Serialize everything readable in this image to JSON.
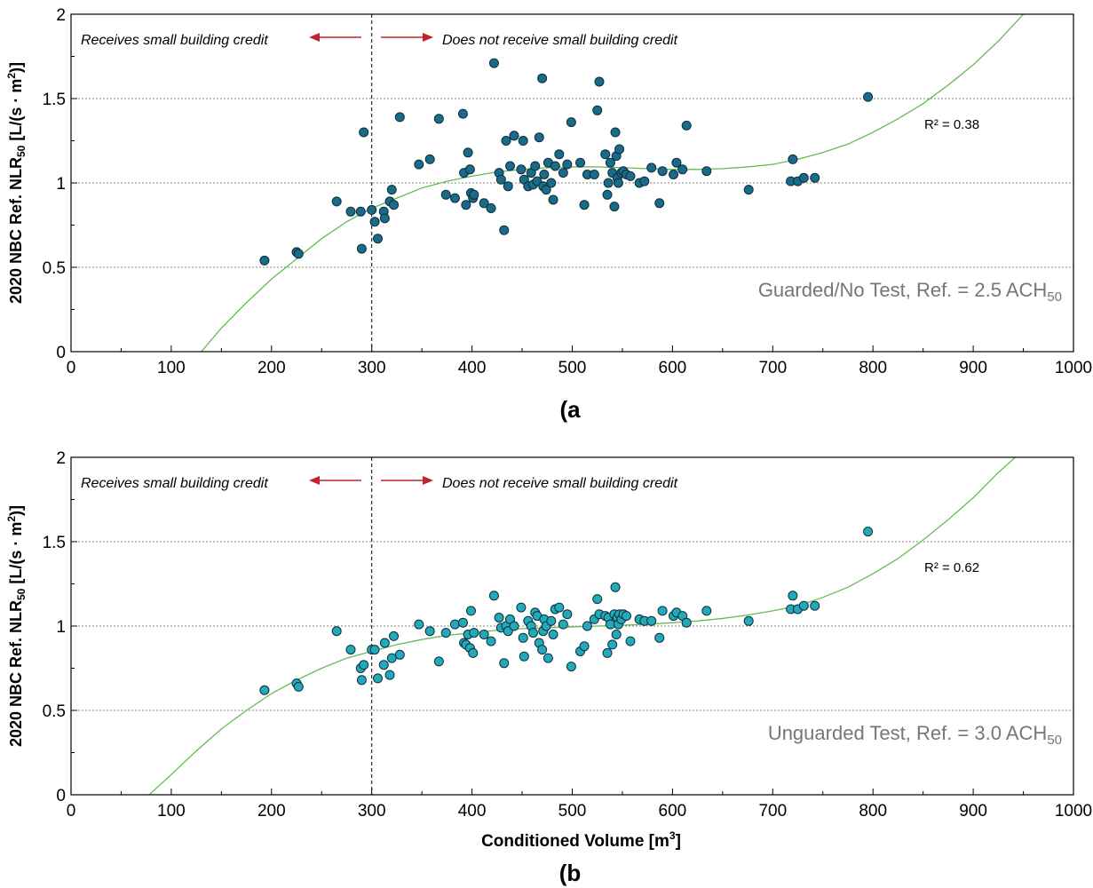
{
  "chart_data": [
    {
      "type": "scatter",
      "panel_label": "(a",
      "xlabel": "",
      "ylabel": "2020 NBC Ref. NLR50 [L/(s·m2)]",
      "ylabel_parts": {
        "pre": "2020 NBC Ref. NLR",
        "sub": "50",
        "mid": " [L/(s · m",
        "sup": "2",
        "post": ")]"
      },
      "xlim": [
        0,
        1000
      ],
      "ylim": [
        0,
        2
      ],
      "x_ticks": [
        0,
        100,
        200,
        300,
        400,
        500,
        600,
        700,
        800,
        900,
        1000
      ],
      "y_ticks": [
        0,
        0.5,
        1,
        1.5,
        2
      ],
      "y_tick_labels": [
        "0",
        "0.5",
        "1",
        "1.5",
        "2"
      ],
      "grid_y": [
        0.5,
        1,
        1.5
      ],
      "threshold_x": 300,
      "left_note": "Receives small building credit",
      "right_note": "Does not receive small building credit",
      "r2_text": "R² = 0.38",
      "condition": {
        "pre": "Guarded/No Test, Ref. = 2.5 ACH",
        "sub": "50"
      },
      "point_color": "#1a6a8a",
      "fit_color": "#66bb55",
      "fit_curve": {
        "x": [
          130,
          150,
          175,
          200,
          225,
          250,
          275,
          300,
          325,
          350,
          375,
          400,
          425,
          450,
          475,
          500,
          525,
          550,
          575,
          600,
          625,
          650,
          675,
          700,
          725,
          750,
          775,
          800,
          825,
          850,
          875,
          900,
          925,
          950
        ],
        "y": [
          0.0,
          0.14,
          0.29,
          0.43,
          0.55,
          0.67,
          0.77,
          0.85,
          0.91,
          0.97,
          1.01,
          1.04,
          1.065,
          1.08,
          1.09,
          1.095,
          1.095,
          1.09,
          1.085,
          1.08,
          1.08,
          1.085,
          1.095,
          1.11,
          1.14,
          1.18,
          1.23,
          1.3,
          1.38,
          1.47,
          1.58,
          1.7,
          1.84,
          2.0
        ]
      },
      "points": [
        [
          193,
          0.54
        ],
        [
          225,
          0.59
        ],
        [
          227,
          0.58
        ],
        [
          265,
          0.89
        ],
        [
          279,
          0.83
        ],
        [
          289,
          0.83
        ],
        [
          290,
          0.61
        ],
        [
          292,
          1.3
        ],
        [
          300,
          0.84
        ],
        [
          303,
          0.77
        ],
        [
          306,
          0.67
        ],
        [
          312,
          0.83
        ],
        [
          313,
          0.79
        ],
        [
          318,
          0.89
        ],
        [
          320,
          0.96
        ],
        [
          322,
          0.87
        ],
        [
          328,
          1.39
        ],
        [
          347,
          1.11
        ],
        [
          358,
          1.14
        ],
        [
          367,
          1.38
        ],
        [
          374,
          0.93
        ],
        [
          383,
          0.91
        ],
        [
          391,
          1.41
        ],
        [
          392,
          1.06
        ],
        [
          394,
          0.87
        ],
        [
          396,
          1.18
        ],
        [
          398,
          1.08
        ],
        [
          399,
          0.94
        ],
        [
          401,
          0.91
        ],
        [
          402,
          0.93
        ],
        [
          412,
          0.88
        ],
        [
          419,
          0.85
        ],
        [
          422,
          1.71
        ],
        [
          427,
          1.06
        ],
        [
          429,
          1.02
        ],
        [
          432,
          0.72
        ],
        [
          434,
          1.25
        ],
        [
          436,
          0.98
        ],
        [
          438,
          1.1
        ],
        [
          442,
          1.28
        ],
        [
          449,
          1.08
        ],
        [
          451,
          1.25
        ],
        [
          452,
          1.02
        ],
        [
          456,
          0.98
        ],
        [
          459,
          1.06
        ],
        [
          461,
          0.99
        ],
        [
          463,
          1.1
        ],
        [
          465,
          1.01
        ],
        [
          467,
          1.27
        ],
        [
          470,
          1.62
        ],
        [
          471,
          0.98
        ],
        [
          472,
          1.05
        ],
        [
          474,
          0.96
        ],
        [
          476,
          1.12
        ],
        [
          479,
          1.0
        ],
        [
          481,
          0.9
        ],
        [
          483,
          1.1
        ],
        [
          487,
          1.17
        ],
        [
          491,
          1.06
        ],
        [
          495,
          1.11
        ],
        [
          499,
          1.36
        ],
        [
          508,
          1.12
        ],
        [
          512,
          0.87
        ],
        [
          515,
          1.05
        ],
        [
          522,
          1.05
        ],
        [
          525,
          1.43
        ],
        [
          527,
          1.6
        ],
        [
          533,
          1.17
        ],
        [
          535,
          0.93
        ],
        [
          536,
          1.0
        ],
        [
          538,
          1.12
        ],
        [
          540,
          1.06
        ],
        [
          542,
          0.86
        ],
        [
          543,
          1.3
        ],
        [
          544,
          1.16
        ],
        [
          545,
          1.03
        ],
        [
          546,
          1.0
        ],
        [
          547,
          1.2
        ],
        [
          549,
          1.06
        ],
        [
          551,
          1.07
        ],
        [
          554,
          1.05
        ],
        [
          558,
          1.04
        ],
        [
          567,
          1.0
        ],
        [
          572,
          1.01
        ],
        [
          579,
          1.09
        ],
        [
          587,
          0.88
        ],
        [
          590,
          1.07
        ],
        [
          601,
          1.05
        ],
        [
          604,
          1.12
        ],
        [
          610,
          1.08
        ],
        [
          614,
          1.34
        ],
        [
          634,
          1.07
        ],
        [
          676,
          0.96
        ],
        [
          718,
          1.01
        ],
        [
          720,
          1.14
        ],
        [
          725,
          1.01
        ],
        [
          731,
          1.03
        ],
        [
          742,
          1.03
        ],
        [
          795,
          1.51
        ]
      ]
    },
    {
      "type": "scatter",
      "panel_label": "(b",
      "xlabel": "Conditioned Volume [m3]",
      "xlabel_parts": {
        "pre": "Conditioned Volume [m",
        "sup": "3",
        "post": "]"
      },
      "ylabel": "2020 NBC Ref. NLR50 [L/(s·m2)]",
      "ylabel_parts": {
        "pre": "2020 NBC Ref. NLR",
        "sub": "50",
        "mid": " [L/(s · m",
        "sup": "2",
        "post": ")]"
      },
      "xlim": [
        0,
        1000
      ],
      "ylim": [
        0,
        2
      ],
      "x_ticks": [
        0,
        100,
        200,
        300,
        400,
        500,
        600,
        700,
        800,
        900,
        1000
      ],
      "y_ticks": [
        0,
        0.5,
        1,
        1.5,
        2
      ],
      "y_tick_labels": [
        "0",
        "0.5",
        "1",
        "1.5",
        "2"
      ],
      "grid_y": [
        0.5,
        1,
        1.5
      ],
      "threshold_x": 300,
      "left_note": "Receives small building credit",
      "right_note": "Does not receive small building credit",
      "r2_text": "R² = 0.62",
      "condition": {
        "pre": "Unguarded Test, Ref. = 3.0 ACH",
        "sub": "50"
      },
      "point_color": "#22aabb",
      "fit_color": "#66bb55",
      "fit_curve": {
        "x": [
          78,
          100,
          125,
          150,
          175,
          200,
          225,
          250,
          275,
          300,
          325,
          350,
          375,
          400,
          425,
          450,
          475,
          500,
          525,
          550,
          575,
          600,
          625,
          650,
          675,
          700,
          725,
          750,
          775,
          800,
          825,
          850,
          875,
          900,
          925,
          942
        ],
        "y": [
          0.0,
          0.12,
          0.26,
          0.39,
          0.5,
          0.6,
          0.68,
          0.75,
          0.81,
          0.85,
          0.89,
          0.92,
          0.945,
          0.96,
          0.975,
          0.985,
          0.99,
          0.995,
          1.0,
          1.005,
          1.01,
          1.02,
          1.03,
          1.045,
          1.065,
          1.09,
          1.12,
          1.17,
          1.23,
          1.31,
          1.4,
          1.51,
          1.63,
          1.76,
          1.91,
          2.0
        ]
      },
      "points": [
        [
          193,
          0.62
        ],
        [
          225,
          0.66
        ],
        [
          227,
          0.64
        ],
        [
          265,
          0.97
        ],
        [
          279,
          0.86
        ],
        [
          289,
          0.75
        ],
        [
          290,
          0.68
        ],
        [
          292,
          0.77
        ],
        [
          300,
          0.86
        ],
        [
          303,
          0.86
        ],
        [
          306,
          0.69
        ],
        [
          312,
          0.77
        ],
        [
          313,
          0.9
        ],
        [
          318,
          0.71
        ],
        [
          320,
          0.81
        ],
        [
          322,
          0.94
        ],
        [
          328,
          0.83
        ],
        [
          347,
          1.01
        ],
        [
          358,
          0.97
        ],
        [
          367,
          0.79
        ],
        [
          374,
          0.96
        ],
        [
          383,
          1.01
        ],
        [
          391,
          1.02
        ],
        [
          392,
          0.9
        ],
        [
          394,
          0.89
        ],
        [
          396,
          0.95
        ],
        [
          398,
          0.87
        ],
        [
          399,
          1.09
        ],
        [
          401,
          0.84
        ],
        [
          402,
          0.96
        ],
        [
          412,
          0.95
        ],
        [
          419,
          0.91
        ],
        [
          422,
          1.18
        ],
        [
          427,
          1.05
        ],
        [
          429,
          0.99
        ],
        [
          432,
          0.78
        ],
        [
          434,
          1.0
        ],
        [
          436,
          0.97
        ],
        [
          438,
          1.04
        ],
        [
          442,
          1.0
        ],
        [
          449,
          1.11
        ],
        [
          451,
          0.93
        ],
        [
          452,
          0.82
        ],
        [
          456,
          1.03
        ],
        [
          459,
          1.0
        ],
        [
          461,
          0.96
        ],
        [
          463,
          1.08
        ],
        [
          465,
          1.06
        ],
        [
          467,
          0.9
        ],
        [
          470,
          0.86
        ],
        [
          471,
          0.97
        ],
        [
          472,
          1.04
        ],
        [
          474,
          1.0
        ],
        [
          476,
          0.81
        ],
        [
          479,
          1.03
        ],
        [
          481,
          0.95
        ],
        [
          483,
          1.1
        ],
        [
          487,
          1.11
        ],
        [
          491,
          1.01
        ],
        [
          495,
          1.07
        ],
        [
          499,
          0.76
        ],
        [
          508,
          0.85
        ],
        [
          512,
          0.88
        ],
        [
          515,
          1.0
        ],
        [
          522,
          1.04
        ],
        [
          525,
          1.16
        ],
        [
          527,
          1.07
        ],
        [
          533,
          1.06
        ],
        [
          535,
          0.84
        ],
        [
          536,
          1.05
        ],
        [
          538,
          1.01
        ],
        [
          540,
          0.89
        ],
        [
          542,
          1.07
        ],
        [
          543,
          1.23
        ],
        [
          544,
          0.95
        ],
        [
          545,
          1.05
        ],
        [
          546,
          1.01
        ],
        [
          547,
          1.07
        ],
        [
          549,
          1.04
        ],
        [
          551,
          1.07
        ],
        [
          554,
          1.06
        ],
        [
          558,
          0.91
        ],
        [
          567,
          1.04
        ],
        [
          572,
          1.03
        ],
        [
          579,
          1.03
        ],
        [
          587,
          0.93
        ],
        [
          590,
          1.09
        ],
        [
          601,
          1.06
        ],
        [
          604,
          1.08
        ],
        [
          610,
          1.06
        ],
        [
          614,
          1.02
        ],
        [
          634,
          1.09
        ],
        [
          676,
          1.03
        ],
        [
          718,
          1.1
        ],
        [
          720,
          1.18
        ],
        [
          725,
          1.1
        ],
        [
          731,
          1.12
        ],
        [
          742,
          1.12
        ],
        [
          795,
          1.56
        ]
      ]
    }
  ]
}
